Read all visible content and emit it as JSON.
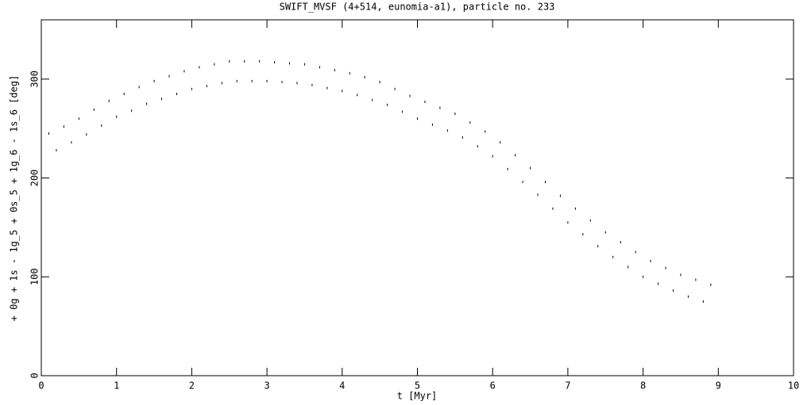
{
  "chart_data": {
    "type": "scatter",
    "title": "SWIFT_MVSF (4+514, eunomia-a1), particle no. 233",
    "x_label": "t [Myr]",
    "y_label": "+ 0g + 1s - 1g_5 + 0s_5 + 1g_6 - 1s_6 [deg]",
    "xlim": [
      0,
      10
    ],
    "ylim": [
      0,
      360
    ],
    "xticks": [
      0,
      1,
      2,
      3,
      4,
      5,
      6,
      7,
      8,
      9,
      10
    ],
    "yticks": [
      0,
      100,
      200,
      300
    ],
    "color": "#000000",
    "x": [
      0.1,
      0.2,
      0.3,
      0.4,
      0.5,
      0.6,
      0.7,
      0.8,
      0.9,
      1.0,
      1.1,
      1.2,
      1.3,
      1.4,
      1.5,
      1.6,
      1.7,
      1.8,
      1.9,
      2.0,
      2.1,
      2.2,
      2.3,
      2.4,
      2.5,
      2.6,
      2.7,
      2.8,
      2.9,
      3.0,
      3.1,
      3.2,
      3.3,
      3.4,
      3.5,
      3.6,
      3.7,
      3.8,
      3.9,
      4.0,
      4.1,
      4.2,
      4.3,
      4.4,
      4.5,
      4.6,
      4.7,
      4.8,
      4.9,
      5.0,
      5.1,
      5.2,
      5.3,
      5.4,
      5.5,
      5.6,
      5.7,
      5.8,
      5.9,
      6.0,
      6.1,
      6.2,
      6.3,
      6.4,
      6.5,
      6.6,
      6.7,
      6.8,
      6.9,
      7.0,
      7.1,
      7.2,
      7.3,
      7.4,
      7.5,
      7.6,
      7.7,
      7.8,
      7.9,
      8.0,
      8.1,
      8.2,
      8.3,
      8.4,
      8.5,
      8.6,
      8.7,
      8.8,
      8.9
    ],
    "values": [
      245,
      228,
      252,
      236,
      260,
      244,
      269,
      253,
      278,
      262,
      285,
      268,
      292,
      275,
      298,
      280,
      303,
      285,
      308,
      290,
      312,
      293,
      315,
      296,
      318,
      298,
      318,
      298,
      318,
      298,
      317,
      297,
      316,
      296,
      315,
      294,
      312,
      291,
      309,
      288,
      306,
      284,
      302,
      279,
      297,
      274,
      290,
      267,
      283,
      260,
      277,
      254,
      271,
      248,
      265,
      241,
      256,
      232,
      247,
      222,
      236,
      209,
      223,
      196,
      210,
      183,
      196,
      169,
      182,
      155,
      169,
      143,
      157,
      131,
      145,
      120,
      135,
      110,
      125,
      100,
      116,
      93,
      109,
      86,
      102,
      80,
      97,
      75,
      92
    ]
  }
}
